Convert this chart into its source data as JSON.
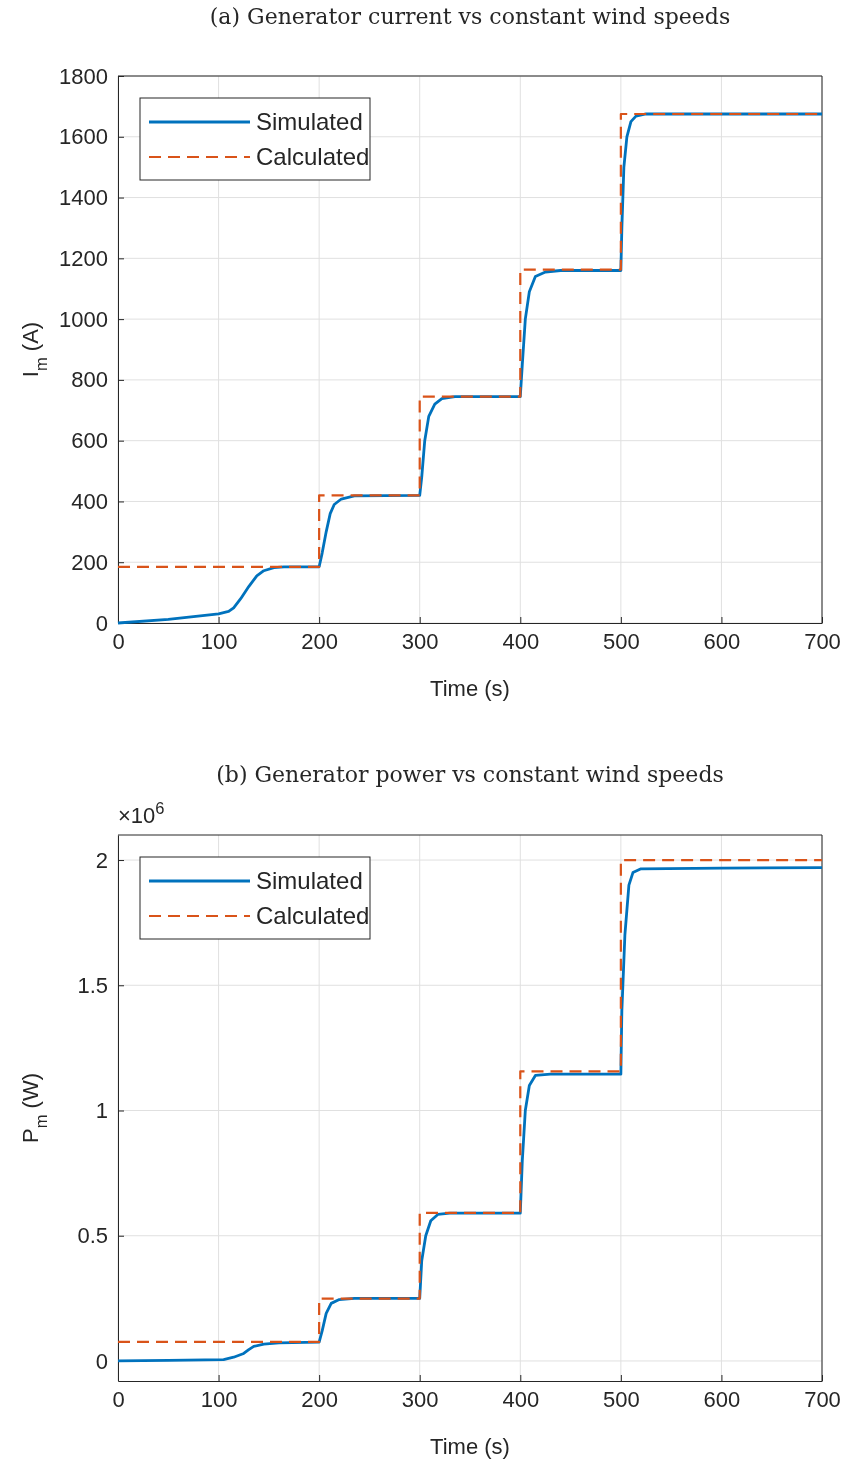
{
  "chart_data": [
    {
      "type": "line",
      "title": "(a) Generator current vs constant wind speeds",
      "xlabel": "Time (s)",
      "ylabel": "I$_{m}$ (A)",
      "xlim": [
        0,
        700
      ],
      "xticks": [
        0,
        100,
        200,
        300,
        400,
        500,
        600,
        700
      ],
      "ylim": [
        0,
        1800
      ],
      "yticks": [
        0,
        200,
        400,
        600,
        800,
        1000,
        1200,
        1400,
        1600,
        1800
      ],
      "grid": true,
      "legend": "top left",
      "series": [
        {
          "name": "Simulated",
          "color": "#0072bd",
          "line_style": "solid",
          "x": [
            0,
            50,
            100,
            110,
            115,
            122,
            130,
            138,
            145,
            155,
            165,
            200,
            203,
            207,
            211,
            215,
            222,
            235,
            300,
            302,
            305,
            309,
            315,
            322,
            335,
            400,
            402,
            405,
            409,
            415,
            425,
            440,
            500,
            501,
            503,
            506,
            510,
            515,
            525,
            700
          ],
          "values": [
            0,
            12,
            30,
            38,
            50,
            80,
            120,
            155,
            172,
            182,
            185,
            185,
            230,
            300,
            360,
            390,
            408,
            418,
            420,
            480,
            600,
            680,
            720,
            738,
            745,
            745,
            850,
            1000,
            1090,
            1140,
            1155,
            1160,
            1160,
            1300,
            1500,
            1600,
            1650,
            1668,
            1675,
            1675
          ]
        },
        {
          "name": "Calculated",
          "color": "#d95319",
          "line_style": "dashed",
          "x": [
            0,
            200,
            200,
            300,
            300,
            400,
            400,
            500,
            500,
            700
          ],
          "values": [
            185,
            185,
            420,
            420,
            745,
            745,
            1163,
            1163,
            1675,
            1675
          ]
        }
      ]
    },
    {
      "type": "line",
      "title": "(b) Generator power vs constant wind speeds",
      "xlabel": "Time (s)",
      "ylabel": "P$_{m}$ (W)",
      "annotations": [
        "×10$^{6}$"
      ],
      "xlim": [
        0,
        700
      ],
      "xticks": [
        0,
        100,
        200,
        300,
        400,
        500,
        600,
        700
      ],
      "ylim": [
        -0.08,
        2.1
      ],
      "yticks": [
        0,
        0.5,
        1,
        1.5,
        2
      ],
      "grid": true,
      "legend": "top left",
      "series": [
        {
          "name": "Simulated",
          "color": "#0072bd",
          "line_style": "solid",
          "x": [
            0,
            50,
            105,
            115,
            125,
            130,
            135,
            145,
            160,
            200,
            203,
            207,
            212,
            220,
            235,
            300,
            302,
            306,
            311,
            318,
            330,
            400,
            402,
            405,
            409,
            415,
            430,
            500,
            501,
            504,
            508,
            512,
            520,
            600,
            700
          ],
          "values": [
            0,
            0.002,
            0.005,
            0.015,
            0.03,
            0.045,
            0.058,
            0.067,
            0.072,
            0.075,
            0.12,
            0.19,
            0.23,
            0.245,
            0.25,
            0.25,
            0.4,
            0.5,
            0.56,
            0.585,
            0.59,
            0.59,
            0.8,
            1.0,
            1.1,
            1.14,
            1.145,
            1.145,
            1.4,
            1.7,
            1.9,
            1.95,
            1.965,
            1.968,
            1.97
          ]
        },
        {
          "name": "Calculated",
          "color": "#d95319",
          "line_style": "dashed",
          "x": [
            0,
            200,
            200,
            300,
            300,
            400,
            400,
            500,
            500,
            700
          ],
          "values": [
            0.076,
            0.076,
            0.249,
            0.249,
            0.591,
            0.591,
            1.156,
            1.156,
            2.0,
            2.0
          ]
        }
      ]
    }
  ]
}
